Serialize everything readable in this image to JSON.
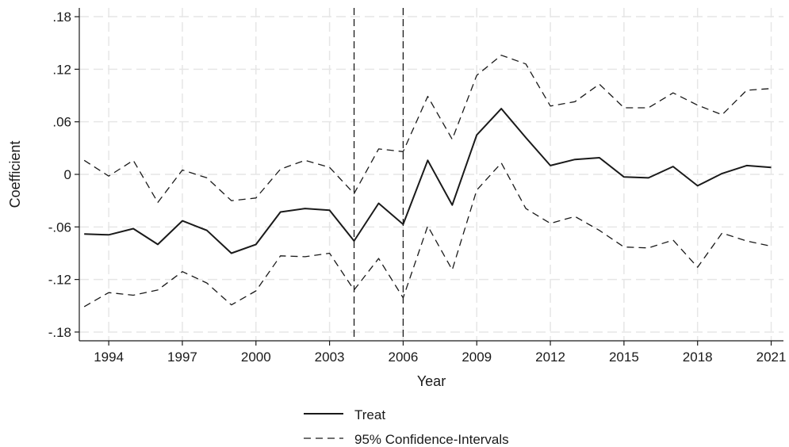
{
  "chart_data": {
    "type": "line",
    "title": "",
    "xlabel": "Year",
    "ylabel": "Coefficient",
    "xlim": [
      1992.8,
      2021.5
    ],
    "ylim": [
      -0.19,
      0.19
    ],
    "x_ticks": [
      1994,
      1997,
      2000,
      2003,
      2006,
      2009,
      2012,
      2015,
      2018,
      2021
    ],
    "x_tick_labels": [
      "1994",
      "1997",
      "2000",
      "2003",
      "2006",
      "2009",
      "2012",
      "2015",
      "2018",
      "2021"
    ],
    "y_ticks": [
      0.18,
      0.12,
      0.06,
      0,
      -0.06,
      -0.12,
      -0.18
    ],
    "y_tick_labels": [
      ".18",
      ".12",
      ".06",
      "0",
      "-.06",
      "-.12",
      "-.18"
    ],
    "grid": true,
    "vertical_reference_lines": [
      2004,
      2006
    ],
    "legend_position": "bottom",
    "x": [
      1993,
      1994,
      1995,
      1996,
      1997,
      1998,
      1999,
      2000,
      2001,
      2002,
      2003,
      2004,
      2005,
      2006,
      2007,
      2008,
      2009,
      2010,
      2011,
      2012,
      2013,
      2014,
      2015,
      2016,
      2017,
      2018,
      2019,
      2020,
      2021
    ],
    "series": [
      {
        "name": "Treat",
        "style": "solid",
        "color": "#1a1a1a",
        "values": [
          -0.068,
          -0.069,
          -0.062,
          -0.08,
          -0.053,
          -0.064,
          -0.09,
          -0.08,
          -0.043,
          -0.039,
          -0.041,
          -0.076,
          -0.033,
          -0.057,
          0.016,
          -0.035,
          0.045,
          0.075,
          0.042,
          0.01,
          0.017,
          0.019,
          -0.003,
          -0.004,
          0.009,
          -0.013,
          0.001,
          0.01,
          0.008
        ]
      },
      {
        "name": "95% Confidence-Intervals",
        "style": "dashed",
        "color": "#1a1a1a",
        "values": [
          0.016,
          -0.002,
          0.016,
          -0.032,
          0.005,
          -0.004,
          -0.03,
          -0.027,
          0.006,
          0.016,
          0.008,
          -0.022,
          0.029,
          0.026,
          0.089,
          0.04,
          0.113,
          0.136,
          0.126,
          0.078,
          0.083,
          0.103,
          0.076,
          0.076,
          0.093,
          0.079,
          0.068,
          0.096,
          0.098
        ]
      },
      {
        "name": "95% Confidence-Intervals (lower)",
        "style": "dashed",
        "color": "#1a1a1a",
        "values": [
          -0.151,
          -0.135,
          -0.138,
          -0.132,
          -0.111,
          -0.124,
          -0.149,
          -0.133,
          -0.093,
          -0.094,
          -0.09,
          -0.132,
          -0.096,
          -0.141,
          -0.059,
          -0.109,
          -0.018,
          0.013,
          -0.039,
          -0.056,
          -0.048,
          -0.064,
          -0.083,
          -0.084,
          -0.075,
          -0.106,
          -0.067,
          -0.076,
          -0.082
        ]
      }
    ],
    "legend": [
      {
        "label": "Treat",
        "style": "solid"
      },
      {
        "label": "95% Confidence-Intervals",
        "style": "dashed"
      }
    ]
  }
}
